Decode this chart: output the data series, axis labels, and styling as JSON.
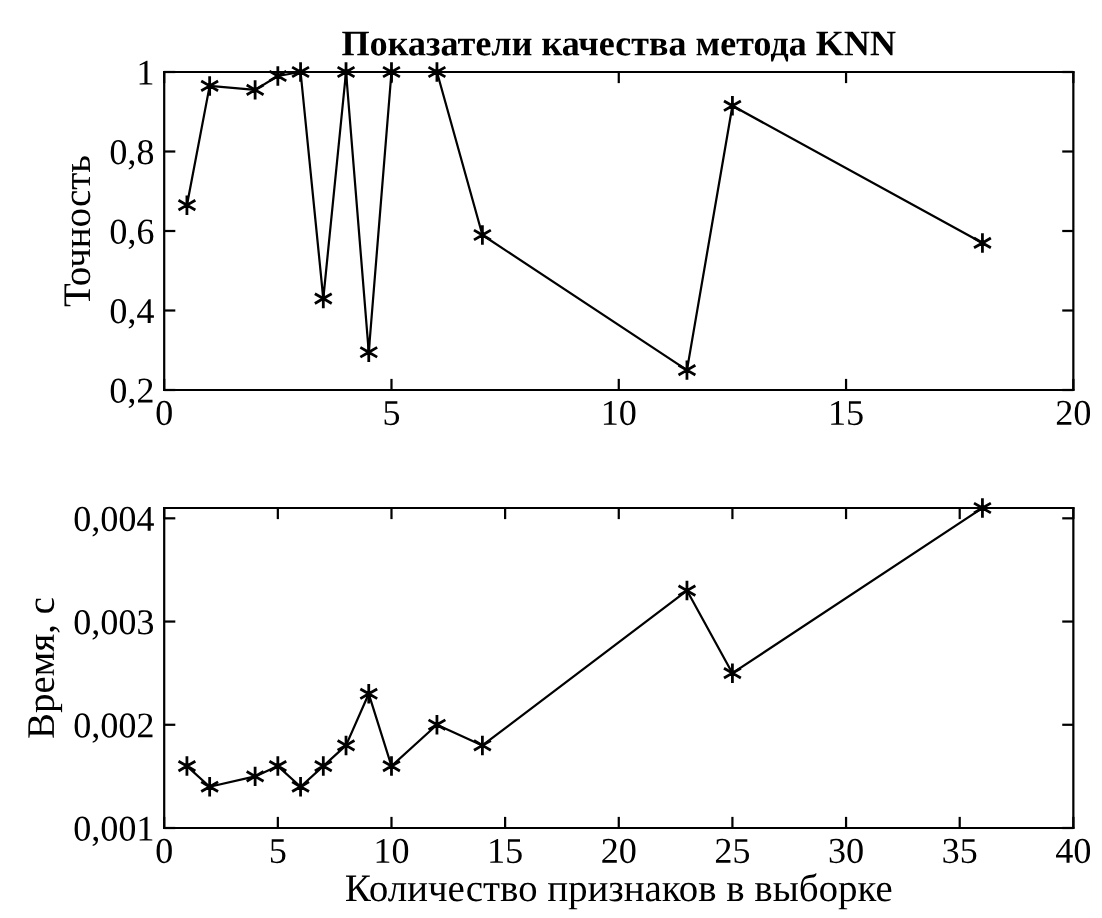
{
  "chart_data": [
    {
      "type": "line",
      "title": "Показатели качества метода KNN",
      "ylabel": "Точность",
      "marker": "cross",
      "line_style": "solid",
      "grid": false,
      "legend": false,
      "x": [
        0.5,
        1,
        2,
        2.5,
        3,
        3.5,
        4,
        4.5,
        5,
        6,
        7,
        11.5,
        12.5,
        18
      ],
      "series": [
        {
          "color": "#000000",
          "values": [
            0.665,
            0.965,
            0.955,
            0.99,
            1,
            0.43,
            1,
            0.295,
            1,
            1,
            0.59,
            0.25,
            0.915,
            0.57
          ]
        }
      ],
      "xlim": [
        0,
        20
      ],
      "xticks": [
        0,
        5,
        10,
        15,
        20
      ],
      "ylim": [
        0.2,
        1
      ],
      "yticks": [
        {
          "value": 0.2,
          "label": "0,2"
        },
        {
          "value": 0.4,
          "label": "0,4"
        },
        {
          "value": 0.6,
          "label": "0,6"
        },
        {
          "value": 0.8,
          "label": "0,8"
        },
        1
      ]
    },
    {
      "type": "line",
      "xlabel": "Количество признаков в выборке",
      "ylabel": "Время, с",
      "marker": "cross",
      "line_style": "solid",
      "grid": false,
      "legend": false,
      "x": [
        1,
        2,
        4,
        5,
        6,
        7,
        8,
        9,
        10,
        12,
        14,
        23,
        25,
        36
      ],
      "series": [
        {
          "color": "#000000",
          "values": [
            0.0016,
            0.0014,
            0.0015,
            0.0016,
            0.0014,
            0.0016,
            0.0018,
            0.0023,
            0.0016,
            0.002,
            0.0018,
            0.0033,
            0.0025,
            0.0041
          ]
        }
      ],
      "xlim": [
        0,
        40
      ],
      "xticks": [
        0,
        5,
        10,
        15,
        20,
        25,
        30,
        35,
        40
      ],
      "ylim": [
        0.001,
        0.0041
      ],
      "yticks": [
        {
          "value": 0.001,
          "label": "0,001"
        },
        {
          "value": 0.002,
          "label": "0,002"
        },
        {
          "value": 0.003,
          "label": "0,003"
        },
        {
          "value": 0.004,
          "label": "0,004"
        }
      ]
    }
  ]
}
